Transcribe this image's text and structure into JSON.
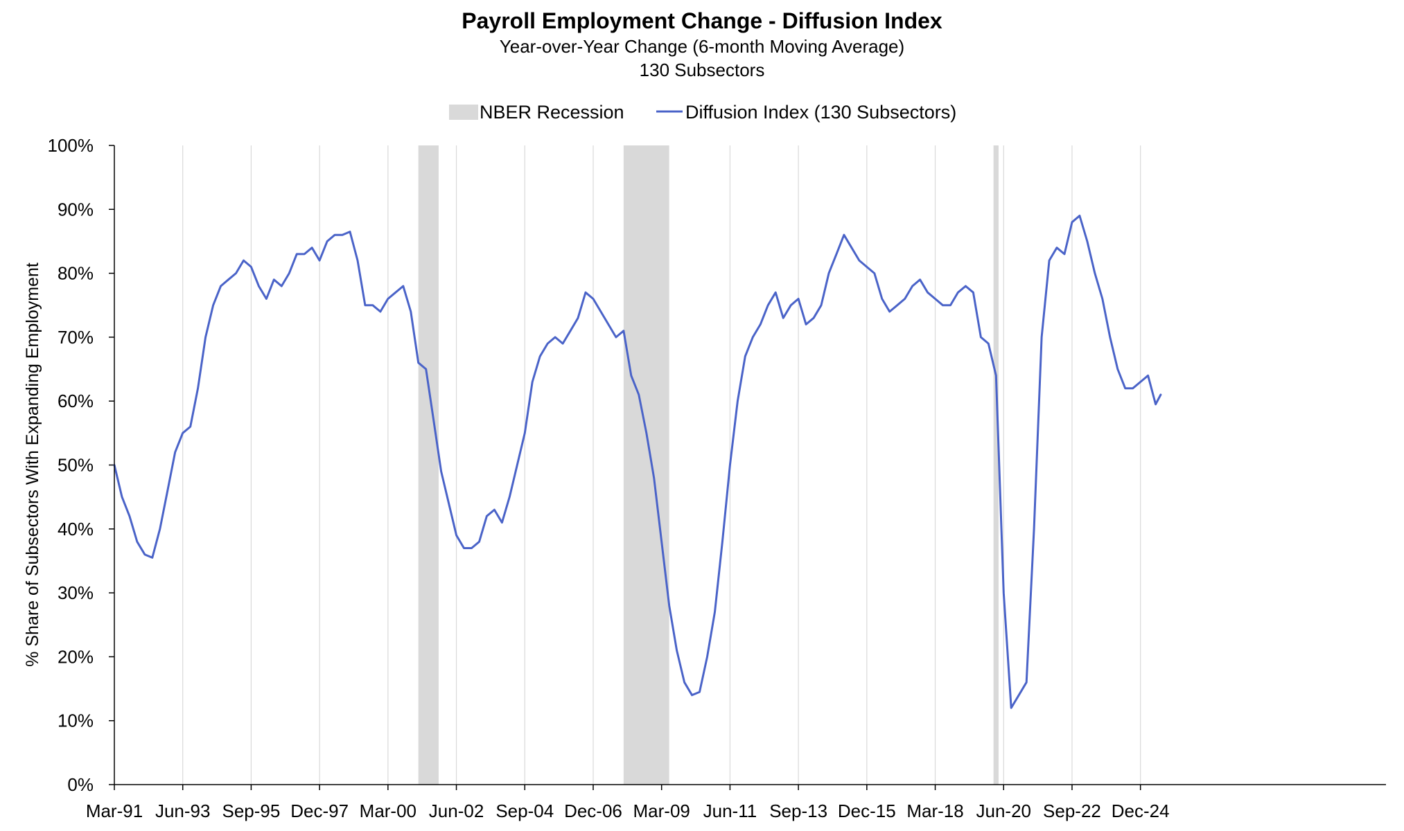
{
  "chart_data": {
    "type": "line",
    "title": "Payroll Employment Change - Diffusion Index",
    "subtitle_lines": [
      "Year-over-Year Change (6-month Moving Average)",
      "130 Subsectors"
    ],
    "ylabel": "% Share of Subsectors With Expanding Employment",
    "xlabel": "",
    "ylim": [
      0,
      100
    ],
    "y_ticks": [
      "0%",
      "10%",
      "20%",
      "30%",
      "40%",
      "50%",
      "60%",
      "70%",
      "80%",
      "90%",
      "100%"
    ],
    "x_tick_labels": [
      "Mar-91",
      "Jun-93",
      "Sep-95",
      "Dec-97",
      "Mar-00",
      "Jun-02",
      "Sep-04",
      "Dec-06",
      "Mar-09",
      "Jun-11",
      "Sep-13",
      "Dec-15",
      "Mar-18",
      "Jun-20",
      "Sep-22",
      "Dec-24"
    ],
    "legend": {
      "placement": "top-center",
      "recession_label": "NBER Recession",
      "series_label": "Diffusion Index (130 Subsectors)"
    },
    "grid": "vertical",
    "colors": {
      "line": "#4a63c8",
      "recession": "#d9d9d9",
      "grid": "#d9d9d9",
      "axis": "#000000"
    },
    "recessions": [
      {
        "start": "Mar-01",
        "end": "Nov-01"
      },
      {
        "start": "Dec-07",
        "end": "Jun-09"
      },
      {
        "start": "Feb-20",
        "end": "Apr-20"
      }
    ],
    "series": [
      {
        "name": "Diffusion Index (130 Subsectors)",
        "points": [
          [
            "Mar-91",
            50
          ],
          [
            "Jun-91",
            45
          ],
          [
            "Sep-91",
            42
          ],
          [
            "Dec-91",
            38
          ],
          [
            "Mar-92",
            36
          ],
          [
            "Jun-92",
            35.5
          ],
          [
            "Sep-92",
            40
          ],
          [
            "Dec-92",
            46
          ],
          [
            "Mar-93",
            52
          ],
          [
            "Jun-93",
            55
          ],
          [
            "Sep-93",
            56
          ],
          [
            "Dec-93",
            62
          ],
          [
            "Mar-94",
            70
          ],
          [
            "Jun-94",
            75
          ],
          [
            "Sep-94",
            78
          ],
          [
            "Dec-94",
            79
          ],
          [
            "Mar-95",
            80
          ],
          [
            "Jun-95",
            82
          ],
          [
            "Sep-95",
            81
          ],
          [
            "Dec-95",
            78
          ],
          [
            "Mar-96",
            76
          ],
          [
            "Jun-96",
            79
          ],
          [
            "Sep-96",
            78
          ],
          [
            "Dec-96",
            80
          ],
          [
            "Mar-97",
            83
          ],
          [
            "Jun-97",
            83
          ],
          [
            "Sep-97",
            84
          ],
          [
            "Dec-97",
            82
          ],
          [
            "Mar-98",
            85
          ],
          [
            "Jun-98",
            86
          ],
          [
            "Sep-98",
            86
          ],
          [
            "Dec-98",
            86.5
          ],
          [
            "Mar-99",
            82
          ],
          [
            "Jun-99",
            75
          ],
          [
            "Sep-99",
            75
          ],
          [
            "Dec-99",
            74
          ],
          [
            "Mar-00",
            76
          ],
          [
            "Jun-00",
            77
          ],
          [
            "Sep-00",
            78
          ],
          [
            "Dec-00",
            74
          ],
          [
            "Mar-01",
            66
          ],
          [
            "Jun-01",
            65
          ],
          [
            "Sep-01",
            57
          ],
          [
            "Dec-01",
            49
          ],
          [
            "Mar-02",
            44
          ],
          [
            "Jun-02",
            39
          ],
          [
            "Sep-02",
            37
          ],
          [
            "Dec-02",
            37
          ],
          [
            "Mar-03",
            38
          ],
          [
            "Jun-03",
            42
          ],
          [
            "Sep-03",
            43
          ],
          [
            "Dec-03",
            41
          ],
          [
            "Mar-04",
            45
          ],
          [
            "Jun-04",
            50
          ],
          [
            "Sep-04",
            55
          ],
          [
            "Dec-04",
            63
          ],
          [
            "Mar-05",
            67
          ],
          [
            "Jun-05",
            69
          ],
          [
            "Sep-05",
            70
          ],
          [
            "Dec-05",
            69
          ],
          [
            "Mar-06",
            71
          ],
          [
            "Jun-06",
            73
          ],
          [
            "Sep-06",
            77
          ],
          [
            "Dec-06",
            76
          ],
          [
            "Mar-07",
            74
          ],
          [
            "Jun-07",
            72
          ],
          [
            "Sep-07",
            70
          ],
          [
            "Dec-07",
            71
          ],
          [
            "Mar-08",
            64
          ],
          [
            "Jun-08",
            61
          ],
          [
            "Sep-08",
            55
          ],
          [
            "Dec-08",
            48
          ],
          [
            "Mar-09",
            38
          ],
          [
            "Jun-09",
            28
          ],
          [
            "Sep-09",
            21
          ],
          [
            "Dec-09",
            16
          ],
          [
            "Mar-10",
            14
          ],
          [
            "Jun-10",
            14.5
          ],
          [
            "Sep-10",
            20
          ],
          [
            "Dec-10",
            27
          ],
          [
            "Mar-11",
            38
          ],
          [
            "Jun-11",
            50
          ],
          [
            "Sep-11",
            60
          ],
          [
            "Dec-11",
            67
          ],
          [
            "Mar-12",
            70
          ],
          [
            "Jun-12",
            72
          ],
          [
            "Sep-12",
            75
          ],
          [
            "Dec-12",
            77
          ],
          [
            "Mar-13",
            73
          ],
          [
            "Jun-13",
            75
          ],
          [
            "Sep-13",
            76
          ],
          [
            "Dec-13",
            72
          ],
          [
            "Mar-14",
            73
          ],
          [
            "Jun-14",
            75
          ],
          [
            "Sep-14",
            80
          ],
          [
            "Dec-14",
            83
          ],
          [
            "Mar-15",
            86
          ],
          [
            "Jun-15",
            84
          ],
          [
            "Sep-15",
            82
          ],
          [
            "Dec-15",
            81
          ],
          [
            "Mar-16",
            80
          ],
          [
            "Jun-16",
            76
          ],
          [
            "Sep-16",
            74
          ],
          [
            "Dec-16",
            75
          ],
          [
            "Mar-17",
            76
          ],
          [
            "Jun-17",
            78
          ],
          [
            "Sep-17",
            79
          ],
          [
            "Dec-17",
            77
          ],
          [
            "Mar-18",
            76
          ],
          [
            "Jun-18",
            75
          ],
          [
            "Sep-18",
            75
          ],
          [
            "Dec-18",
            77
          ],
          [
            "Mar-19",
            78
          ],
          [
            "Jun-19",
            77
          ],
          [
            "Sep-19",
            70
          ],
          [
            "Dec-19",
            69
          ],
          [
            "Mar-20",
            64
          ],
          [
            "Jun-20",
            30
          ],
          [
            "Sep-20",
            12
          ],
          [
            "Dec-20",
            14
          ],
          [
            "Mar-21",
            16
          ],
          [
            "Jun-21",
            40
          ],
          [
            "Sep-21",
            70
          ],
          [
            "Dec-21",
            82
          ],
          [
            "Mar-22",
            84
          ],
          [
            "Jun-22",
            83
          ],
          [
            "Sep-22",
            88
          ],
          [
            "Dec-22",
            89
          ],
          [
            "Mar-23",
            85
          ],
          [
            "Jun-23",
            80
          ],
          [
            "Sep-23",
            76
          ],
          [
            "Dec-23",
            70
          ],
          [
            "Mar-24",
            65
          ],
          [
            "Jun-24",
            62
          ],
          [
            "Sep-24",
            62
          ],
          [
            "Dec-24",
            63
          ],
          [
            "Mar-25",
            64
          ],
          [
            "Jun-25",
            59.5
          ],
          [
            "Aug-25",
            61
          ]
        ]
      }
    ]
  }
}
